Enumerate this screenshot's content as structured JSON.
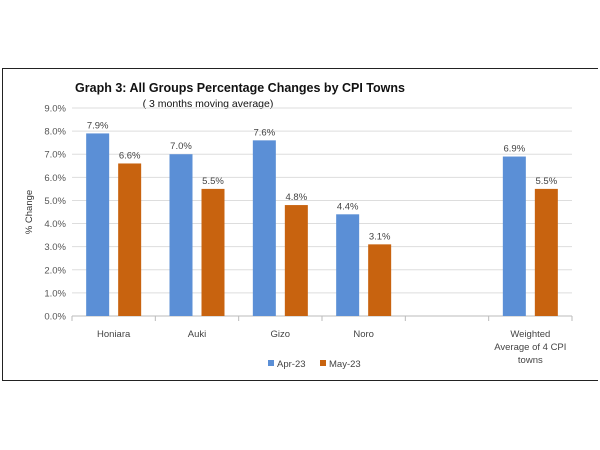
{
  "chart_data": {
    "type": "bar",
    "title": "Graph 3: All Groups Percentage Changes by CPI Towns",
    "subtitle": "( 3 months moving average)",
    "xlabel": "",
    "ylabel": "% Change",
    "ylim": [
      0,
      9
    ],
    "yticks": [
      "0.0%",
      "1.0%",
      "2.0%",
      "3.0%",
      "4.0%",
      "5.0%",
      "6.0%",
      "7.0%",
      "8.0%",
      "9.0%"
    ],
    "grid": true,
    "legend": "bottom",
    "categories": [
      "Honiara",
      "Auki",
      "Gizo",
      "Noro",
      "",
      [
        "Weighted",
        "Average of 4 CPI",
        "towns"
      ]
    ],
    "series": [
      {
        "name": "Apr-23",
        "color": "#5b8fd6",
        "values": [
          7.9,
          7.0,
          7.6,
          4.4,
          null,
          6.9
        ],
        "labels": [
          "7.9%",
          "7.0%",
          "7.6%",
          "4.4%",
          "",
          "6.9%"
        ]
      },
      {
        "name": "May-23",
        "color": "#c8630f",
        "values": [
          6.6,
          5.5,
          4.8,
          3.1,
          null,
          5.5
        ],
        "labels": [
          "6.6%",
          "5.5%",
          "4.8%",
          "3.1%",
          "",
          "5.5%"
        ]
      }
    ]
  }
}
